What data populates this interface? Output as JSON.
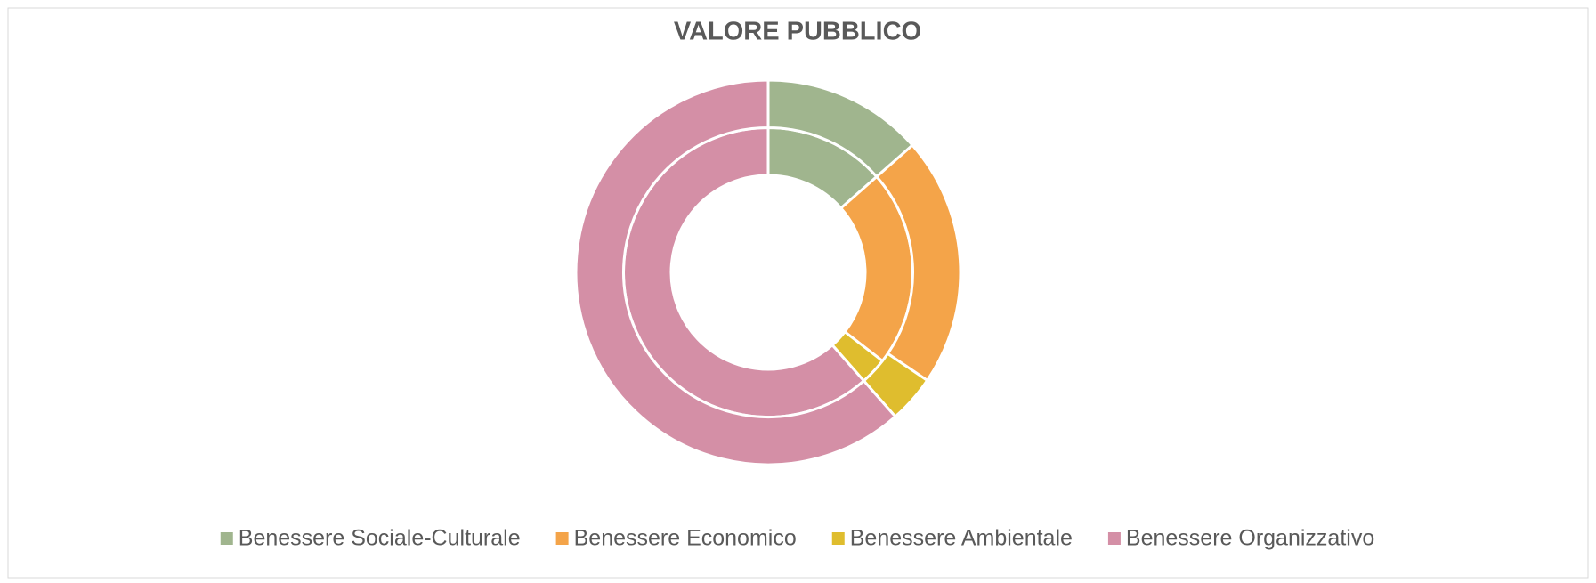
{
  "chart_data": {
    "type": "doughnut",
    "title": "VALORE PUBBLICO",
    "categories": [
      "Benessere Sociale-Culturale",
      "Benessere Economico",
      "Benessere Ambientale",
      "Benessere Organizzativo"
    ],
    "colors": [
      "#a0b58e",
      "#f4a449",
      "#dfbd2e",
      "#d48fa6"
    ],
    "series": [
      {
        "values": [
          13.5,
          22,
          3,
          61.5
        ]
      },
      {
        "values": [
          13.5,
          21,
          4,
          61.5
        ]
      }
    ],
    "legend": "bottom"
  }
}
